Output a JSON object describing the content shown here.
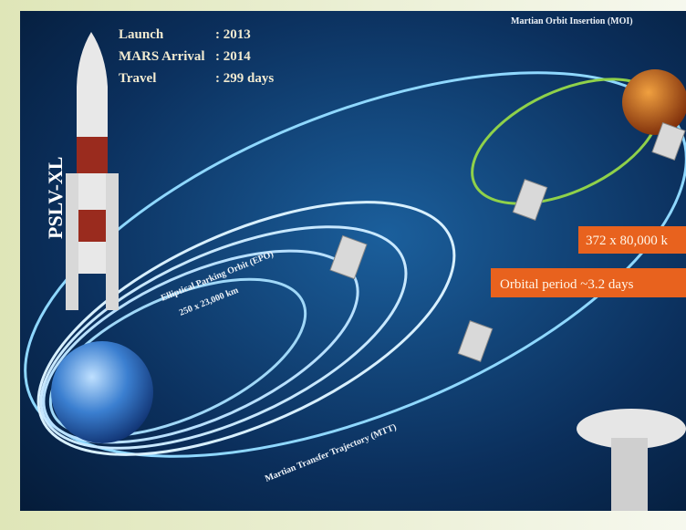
{
  "info": {
    "launch_label": "Launch",
    "launch_value": ": 2013",
    "arrival_label": "MARS Arrival",
    "arrival_value": ": 2014",
    "travel_label": "Travel",
    "travel_value": ": 299 days"
  },
  "rocket": "PSLV-XL",
  "moi": "Martian Orbit Insertion (MOI)",
  "epo": {
    "name": "Elliptical Parking Orbit (EPO)",
    "size": "250 x 23,000 km"
  },
  "mars_orbit": "372 x 80,000 k",
  "orbital_period": "Orbital period ~3.2 days",
  "mtt": "Martian Transfer Trajectory (MTT)"
}
